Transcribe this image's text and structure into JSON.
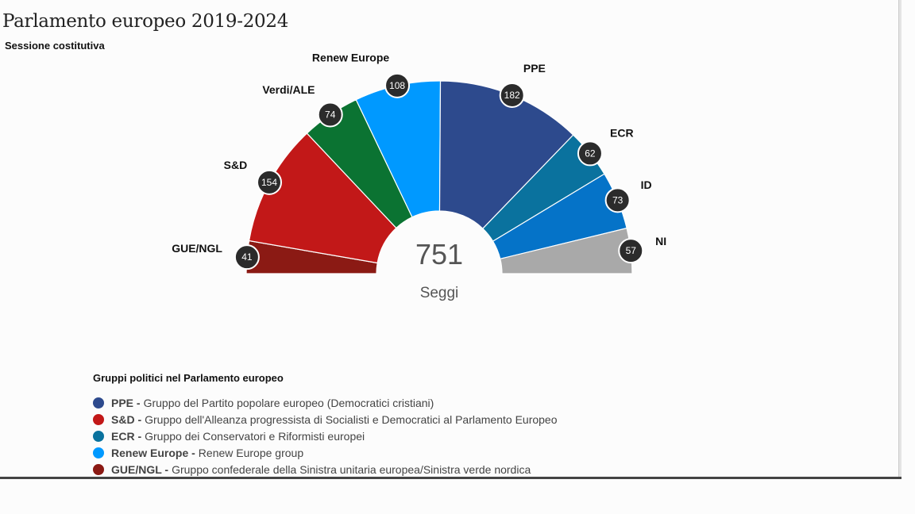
{
  "header": {
    "title": "Parlamento europeo 2019-2024",
    "subtitle": "Sessione costitutiva"
  },
  "chart_data": {
    "type": "pie",
    "subtype": "parliament-semicircle",
    "title": "Parlamento europeo 2019-2024",
    "subtitle": "Sessione costitutiva",
    "total": "751",
    "total_label": "Seggi",
    "groups": [
      {
        "name": "GUE/NGL",
        "seats": 41,
        "color": "#8b1a14"
      },
      {
        "name": "S&D",
        "seats": 154,
        "color": "#c21818"
      },
      {
        "name": "Verdi/ALE",
        "seats": 74,
        "color": "#0b7332"
      },
      {
        "name": "Renew Europe",
        "seats": 108,
        "color": "#0099ff"
      },
      {
        "name": "PPE",
        "seats": 182,
        "color": "#2d4a8d"
      },
      {
        "name": "ECR",
        "seats": 62,
        "color": "#0a729e"
      },
      {
        "name": "ID",
        "seats": 73,
        "color": "#0573c8"
      },
      {
        "name": "NI",
        "seats": 57,
        "color": "#a9a9a9"
      }
    ]
  },
  "legend": {
    "title": "Gruppi politici nel Parlamento europeo",
    "items": [
      {
        "key": "PPE -",
        "text": "Gruppo del Partito popolare europeo (Democratici cristiani)",
        "color": "#2d4a8d"
      },
      {
        "key": "S&D -",
        "text": "Gruppo dell'Alleanza progressista di Socialisti e Democratici al Parlamento Europeo",
        "color": "#c21818"
      },
      {
        "key": "ECR -",
        "text": "Gruppo dei Conservatori e Riformisti europei",
        "color": "#0a729e"
      },
      {
        "key": "Renew Europe -",
        "text": "Renew Europe group",
        "color": "#0099ff"
      },
      {
        "key": "GUE/NGL -",
        "text": "Gruppo confederale della Sinistra unitaria europea/Sinistra verde nordica",
        "color": "#8b1a14"
      }
    ]
  }
}
